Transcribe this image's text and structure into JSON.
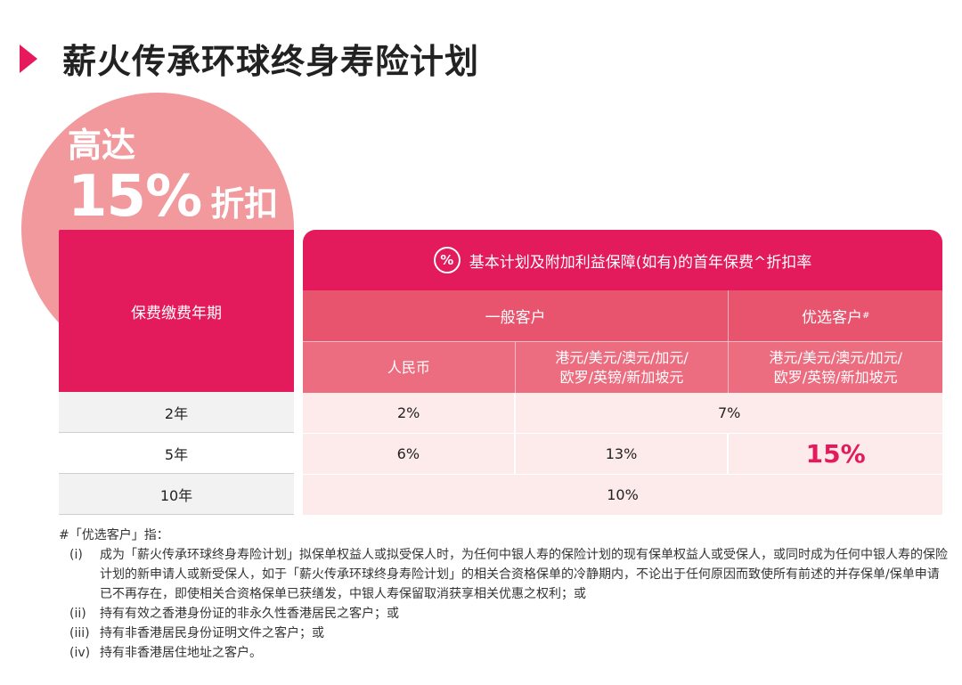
{
  "title": "薪火传承环球终身寿险计划",
  "promo": {
    "line1": "高达",
    "big": "15%",
    "small": "折扣"
  },
  "table": {
    "left_header": "保费缴费年期",
    "left_rows": [
      "2年",
      "5年",
      "10年"
    ],
    "top_icon": "%",
    "top_header": "基本计划及附加利益保障(如有)的首年保费^折扣率",
    "group_general": "一般客户",
    "group_preferred": "优选客户",
    "group_preferred_mark": "#",
    "col_rmb": "人民币",
    "col_fx_line1": "港元/美元/澳元/加元/",
    "col_fx_line2": "欧罗/英镑/新加坡元",
    "row_2y": {
      "rmb": "2%",
      "merged": "7%"
    },
    "row_5y": {
      "rmb": "6%",
      "fx": "13%",
      "preferred": "15%"
    },
    "row_10y": {
      "merged": "10%"
    }
  },
  "notes": {
    "heading": "#「优选客户」指：",
    "items": [
      {
        "num": "(i)",
        "text": "成为「薪火传承环球终身寿险计划」拟保单权益人或拟受保人时，为任何中银人寿的保险计划的现有保单权益人或受保人，或同时成为任何中银人寿的保险计划的新申请人或新受保人，如于「薪火传承环球终身寿险计划」的相关合资格保单的冷静期内，不论出于任何原因而致使所有前述的并存保单/保单申请已不再存在，即使相关合资格保单已获缮发，中银人寿保留取消获享相关优惠之权利；或"
      },
      {
        "num": "(ii)",
        "text": "持有有效之香港身份证的非永久性香港居民之客户；或"
      },
      {
        "num": "(iii)",
        "text": "持有非香港居民身份证明文件之客户；或"
      },
      {
        "num": "(iv)",
        "text": "持有非香港居住地址之客户。"
      }
    ]
  },
  "colors": {
    "accent": "#e31a5b",
    "circle": "#f1999d",
    "row_bg": "#fdeaea"
  }
}
